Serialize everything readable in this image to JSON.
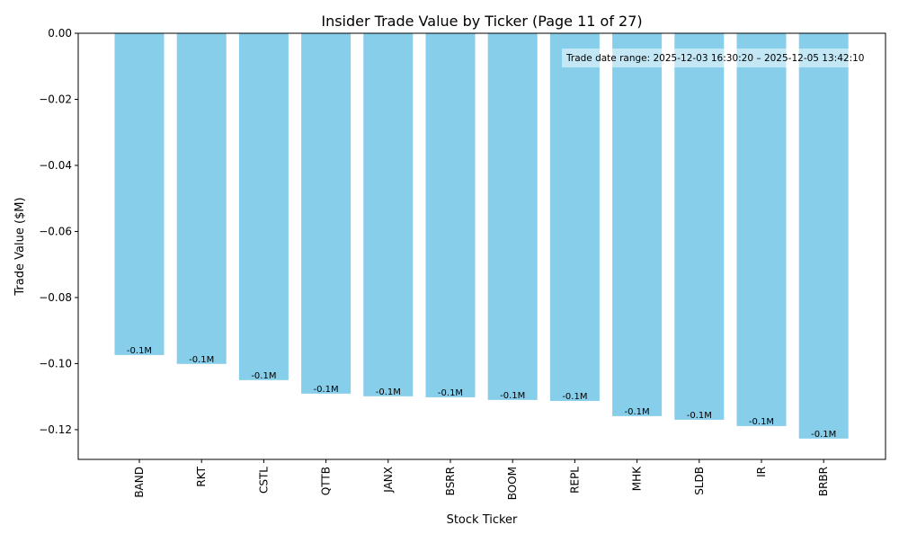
{
  "chart_data": {
    "type": "bar",
    "title": "Insider Trade Value by Ticker (Page 11 of 27)",
    "xlabel": "Stock Ticker",
    "ylabel": "Trade Value ($M)",
    "categories": [
      "BAND",
      "RKT",
      "CSTL",
      "QTTB",
      "JANX",
      "BSRR",
      "BOOM",
      "REPL",
      "MHK",
      "SLDB",
      "IR",
      "BRBR"
    ],
    "values": [
      -0.0974,
      -0.1001,
      -0.105,
      -0.1091,
      -0.1099,
      -0.1102,
      -0.111,
      -0.1113,
      -0.1159,
      -0.117,
      -0.1189,
      -0.1227
    ],
    "data_labels": [
      "-0.1M",
      "-0.1M",
      "-0.1M",
      "-0.1M",
      "-0.1M",
      "-0.1M",
      "-0.1M",
      "-0.1M",
      "-0.1M",
      "-0.1M",
      "-0.1M",
      "-0.1M"
    ],
    "ylim": [
      -0.129,
      0.0
    ],
    "yticks": [
      0.0,
      -0.02,
      -0.04,
      -0.06,
      -0.08,
      -0.1,
      -0.12
    ],
    "ytick_labels": [
      "0.00",
      "−0.02",
      "−0.04",
      "−0.06",
      "−0.08",
      "−0.10",
      "−0.12"
    ],
    "annotation": "Trade date range: 2025-12-03 16:30:20 – 2025-12-05 13:42:10",
    "bar_color": "#87ceeb",
    "grid": false,
    "legend": "none"
  }
}
